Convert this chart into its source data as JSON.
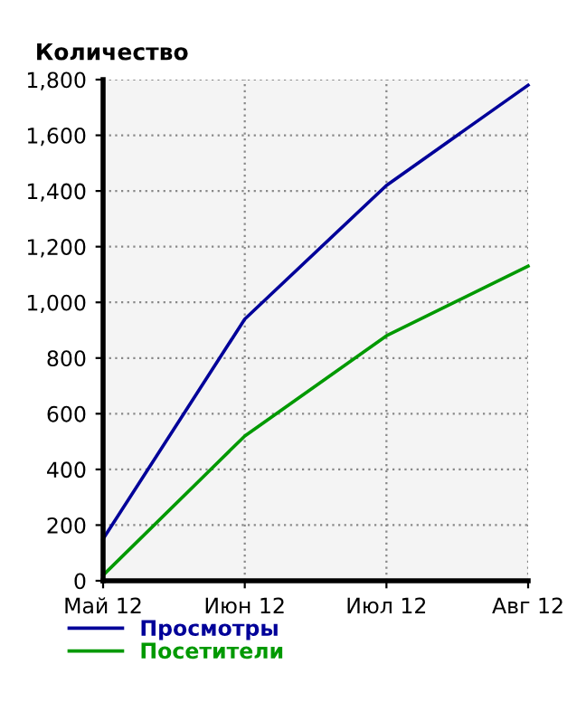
{
  "chart_data": {
    "type": "line",
    "ylabel": "Количество",
    "categories": [
      "Май 12",
      "Июн 12",
      "Июл 12",
      "Авг 12"
    ],
    "series": [
      {
        "name": "Просмотры",
        "color": "#000099",
        "values": [
          150,
          940,
          1420,
          1780
        ]
      },
      {
        "name": "Посетители",
        "color": "#009900",
        "values": [
          20,
          520,
          880,
          1130
        ]
      }
    ],
    "ylim": [
      0,
      1800
    ],
    "yticks": [
      {
        "value": 0,
        "label": "0"
      },
      {
        "value": 200,
        "label": "200"
      },
      {
        "value": 400,
        "label": "400"
      },
      {
        "value": 600,
        "label": "600"
      },
      {
        "value": 800,
        "label": "800"
      },
      {
        "value": 1000,
        "label": "1,000"
      },
      {
        "value": 1200,
        "label": "1,200"
      },
      {
        "value": 1400,
        "label": "1,400"
      },
      {
        "value": 1600,
        "label": "1,600"
      },
      {
        "value": 1800,
        "label": "1,800"
      }
    ],
    "grid": true,
    "legend": "bottom left",
    "marker": "none",
    "line_style": "solid"
  }
}
